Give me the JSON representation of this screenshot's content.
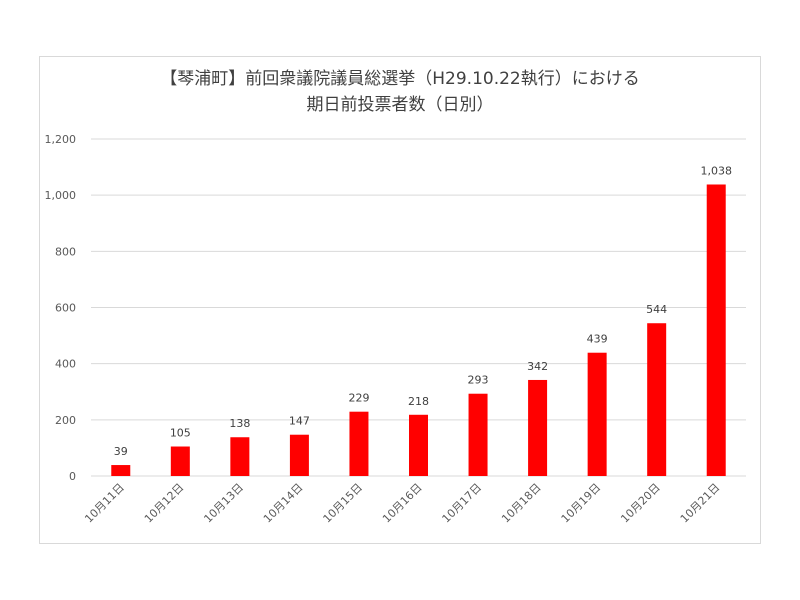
{
  "chart_data": {
    "type": "bar",
    "title_line1": "【琴浦町】前回衆議院議員総選挙（H29.10.22執行）における",
    "title_line2": "期日前投票者数（日別）",
    "categories": [
      "10月11日",
      "10月12日",
      "10月13日",
      "10月14日",
      "10月15日",
      "10月16日",
      "10月17日",
      "10月18日",
      "10月19日",
      "10月20日",
      "10月21日"
    ],
    "values": [
      39,
      105,
      138,
      147,
      229,
      218,
      293,
      342,
      439,
      544,
      1038
    ],
    "data_labels": [
      "39",
      "105",
      "138",
      "147",
      "229",
      "218",
      "293",
      "342",
      "439",
      "544",
      "1,038"
    ],
    "y_ticks": [
      "0",
      "200",
      "400",
      "600",
      "800",
      "1,000",
      "1,200"
    ],
    "ylim": [
      0,
      1200
    ],
    "bar_color": "#ff0000",
    "grid_color": "#d9d9d9",
    "grid": true
  }
}
